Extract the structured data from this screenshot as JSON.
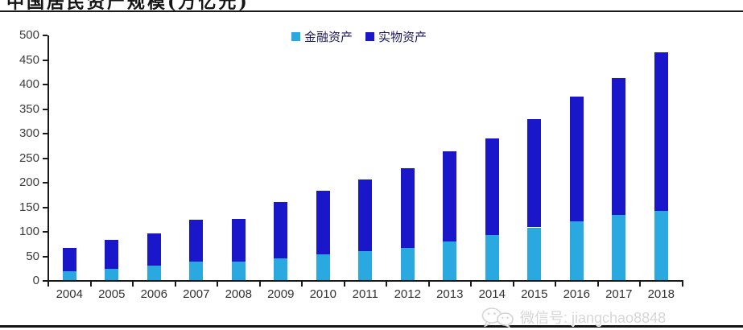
{
  "page_title": "中国居民资产规模(万亿元)",
  "watermark": {
    "label": "微信号: jiangchao8848"
  },
  "colors": {
    "axis": "#1a1a1a",
    "tick_label": "#3d3d3d",
    "legend_text": "#1a1a5a",
    "watermark_text": "#d7d7d7",
    "financial": "#29A9E0",
    "physical": "#1A16C9"
  },
  "chart_data": {
    "type": "bar",
    "stacked": true,
    "title": "中国居民资产规模(万亿元)",
    "categories": [
      "2004",
      "2005",
      "2006",
      "2007",
      "2008",
      "2009",
      "2010",
      "2011",
      "2012",
      "2013",
      "2014",
      "2015",
      "2016",
      "2017",
      "2018"
    ],
    "series": [
      {
        "name": "金融资产",
        "color": "#29A9E0",
        "values": [
          20,
          24,
          31,
          39,
          39,
          46,
          54,
          61,
          68,
          80,
          93,
          109,
          121,
          134,
          142
        ]
      },
      {
        "name": "实物资产",
        "color": "#1A16C9",
        "values": [
          47,
          60,
          65,
          86,
          88,
          115,
          130,
          145,
          162,
          184,
          197,
          221,
          254,
          279,
          323
        ]
      }
    ],
    "totals": [
      67,
      84,
      96,
      125,
      127,
      161,
      184,
      206,
      230,
      264,
      290,
      330,
      375,
      413,
      465
    ],
    "xlabel": "",
    "ylabel": "",
    "ylim": [
      0,
      500
    ],
    "yticks": [
      0,
      50,
      100,
      150,
      200,
      250,
      300,
      350,
      400,
      450,
      500
    ],
    "grid": false,
    "legend_position": "top-center"
  }
}
